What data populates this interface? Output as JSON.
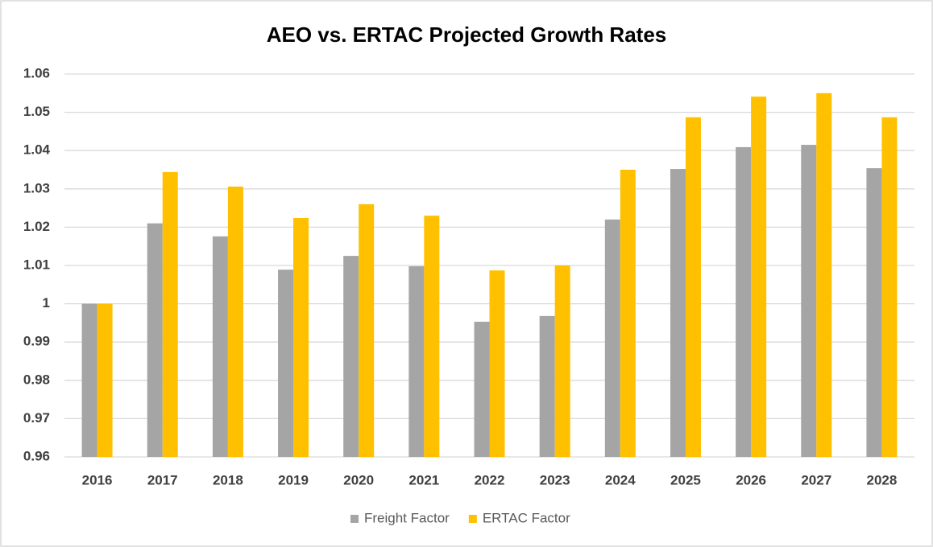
{
  "chart_data": {
    "type": "bar",
    "title": "AEO vs. ERTAC Projected Growth Rates",
    "categories": [
      "2016",
      "2017",
      "2018",
      "2019",
      "2020",
      "2021",
      "2022",
      "2023",
      "2024",
      "2025",
      "2026",
      "2027",
      "2028"
    ],
    "series": [
      {
        "name": "Freight Factor",
        "color": "#a5a5a5",
        "values": [
          1.0,
          1.021,
          1.0176,
          1.0089,
          1.0125,
          1.0098,
          0.9953,
          0.9968,
          1.022,
          1.0352,
          1.0409,
          1.0415,
          1.0354
        ]
      },
      {
        "name": "ERTAC Factor",
        "color": "#ffc000",
        "values": [
          1.0,
          1.0344,
          1.0306,
          1.0224,
          1.026,
          1.023,
          1.0087,
          1.01,
          1.035,
          1.0487,
          1.0541,
          1.055,
          1.0487
        ]
      }
    ],
    "ylim": [
      0.96,
      1.06
    ],
    "yticks": [
      0.96,
      0.97,
      0.98,
      0.99,
      1,
      1.01,
      1.02,
      1.03,
      1.04,
      1.05,
      1.06
    ],
    "grid": true,
    "legend": "bottom"
  }
}
